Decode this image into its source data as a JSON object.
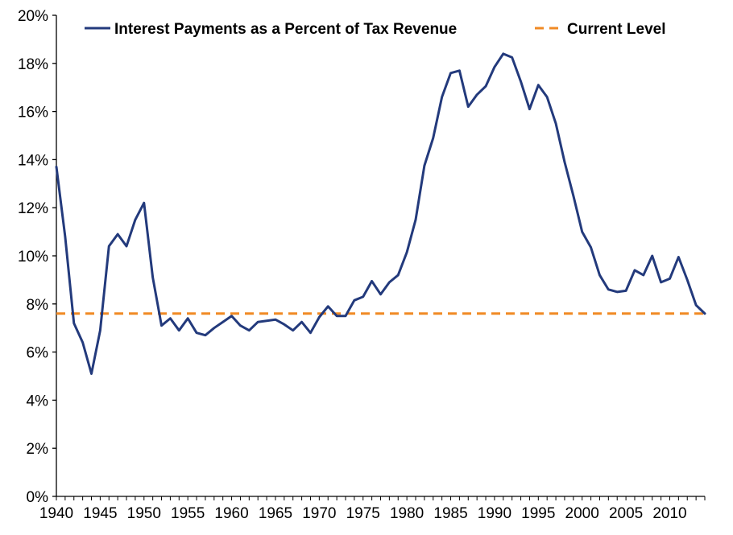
{
  "chart_data": {
    "type": "line",
    "title": "",
    "xlabel": "",
    "ylabel": "",
    "xlim": [
      1940,
      2014
    ],
    "ylim": [
      0,
      20
    ],
    "x_ticks": [
      1940,
      1945,
      1950,
      1955,
      1960,
      1965,
      1970,
      1975,
      1980,
      1985,
      1990,
      1995,
      2000,
      2005,
      2010
    ],
    "x_tick_labels": [
      "1940",
      "1945",
      "1950",
      "1955",
      "1960",
      "1965",
      "1970",
      "1975",
      "1980",
      "1985",
      "1990",
      "1995",
      "2000",
      "2005",
      "2010"
    ],
    "y_ticks": [
      0,
      2,
      4,
      6,
      8,
      10,
      12,
      14,
      16,
      18,
      20
    ],
    "y_tick_labels": [
      "0%",
      "2%",
      "4%",
      "6%",
      "8%",
      "10%",
      "12%",
      "14%",
      "16%",
      "18%",
      "20%"
    ],
    "grid": false,
    "legend_position": "top",
    "series": [
      {
        "name": "Interest Payments as a Percent of Tax Revenue",
        "color": "#233a7c",
        "style": "solid",
        "x": [
          1940,
          1941,
          1942,
          1943,
          1944,
          1945,
          1946,
          1947,
          1948,
          1949,
          1950,
          1951,
          1952,
          1953,
          1954,
          1955,
          1956,
          1957,
          1958,
          1959,
          1960,
          1961,
          1962,
          1963,
          1964,
          1965,
          1966,
          1967,
          1968,
          1969,
          1970,
          1971,
          1972,
          1973,
          1974,
          1975,
          1976,
          1977,
          1978,
          1979,
          1980,
          1981,
          1982,
          1983,
          1984,
          1985,
          1986,
          1987,
          1988,
          1989,
          1990,
          1991,
          1992,
          1993,
          1994,
          1995,
          1996,
          1997,
          1998,
          1999,
          2000,
          2001,
          2002,
          2003,
          2004,
          2005,
          2006,
          2007,
          2008,
          2009,
          2010,
          2011,
          2012,
          2013,
          2014
        ],
        "values": [
          13.7,
          10.8,
          7.2,
          6.4,
          5.1,
          6.9,
          10.4,
          10.9,
          10.4,
          11.5,
          12.2,
          9.1,
          7.1,
          7.4,
          6.9,
          7.4,
          6.8,
          6.7,
          7.0,
          7.25,
          7.5,
          7.1,
          6.9,
          7.25,
          7.3,
          7.35,
          7.15,
          6.9,
          7.25,
          6.8,
          7.45,
          7.9,
          7.5,
          7.5,
          8.15,
          8.3,
          8.95,
          8.4,
          8.9,
          9.2,
          10.15,
          11.5,
          13.75,
          14.9,
          16.6,
          17.6,
          17.7,
          16.2,
          16.7,
          17.05,
          17.85,
          18.4,
          18.25,
          17.25,
          16.1,
          17.1,
          16.6,
          15.5,
          13.9,
          12.5,
          11.0,
          10.35,
          9.2,
          8.6,
          8.5,
          8.55,
          9.4,
          9.2,
          10.0,
          8.9,
          9.05,
          9.95,
          9.0,
          7.95,
          7.6
        ]
      },
      {
        "name": "Current Level",
        "color": "#f08a24",
        "style": "dashed",
        "value": 7.6
      }
    ]
  }
}
